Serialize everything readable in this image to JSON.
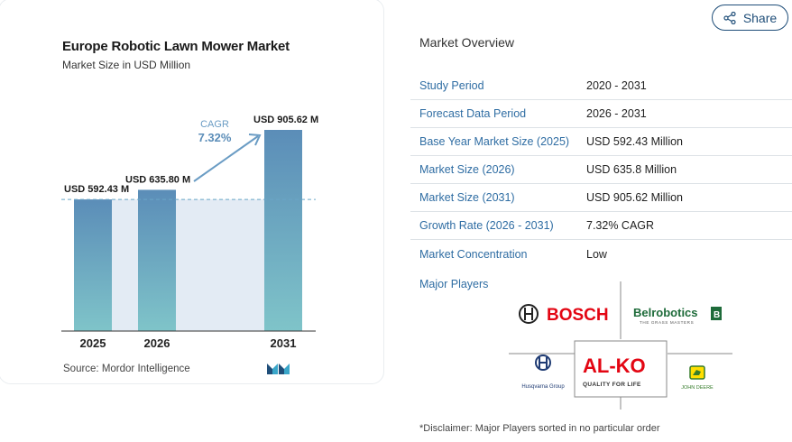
{
  "chart_data": {
    "type": "bar",
    "title": "Europe Robotic Lawn Mower Market",
    "subtitle": "Market Size in USD Million",
    "categories": [
      "2025",
      "2026",
      "2031"
    ],
    "values": [
      592.43,
      635.8,
      905.62
    ],
    "value_labels": [
      "USD 592.43 M",
      "USD 635.80 M",
      "USD 905.62 M"
    ],
    "cagr_label": "CAGR",
    "cagr_value": "7.32%",
    "bar_color_top": "#5b8db8",
    "bar_color_bottom": "#7fc4c9",
    "ylim": [
      0,
      1000
    ]
  },
  "source": "Source: Mordor Intelligence",
  "share": {
    "label": "Share",
    "icon": "share-icon"
  },
  "overview": {
    "title": "Market Overview",
    "rows": [
      {
        "label": "Study Period",
        "value": "2020 - 2031"
      },
      {
        "label": "Forecast Data Period",
        "value": "2026 - 2031"
      },
      {
        "label": "Base Year Market Size (2025)",
        "value": "USD 592.43 Million"
      },
      {
        "label": "Market Size (2026)",
        "value": "USD 635.8 Million"
      },
      {
        "label": "Market Size (2031)",
        "value": "USD 905.62 Million"
      },
      {
        "label": "Growth Rate (2026 - 2031)",
        "value": "7.32% CAGR"
      },
      {
        "label": "Market Concentration",
        "value": "Low"
      }
    ]
  },
  "major_players": {
    "title": "Major Players",
    "logos": [
      "BOSCH",
      "Belrobotics",
      "AL-KO",
      "Husqvarna Group",
      "John Deere"
    ],
    "belrobotics_tagline": "THE GRASS MASTERS",
    "alko_tagline": "QUALITY FOR LIFE",
    "husqvarna_text": "Husqvarna Group",
    "johndeere_text": "JOHN DEERE"
  },
  "disclaimer": "*Disclaimer: Major Players sorted in no particular order",
  "colors": {
    "accent": "#2f6da3",
    "brand_red": "#e30613",
    "deere_green": "#367c2b"
  }
}
